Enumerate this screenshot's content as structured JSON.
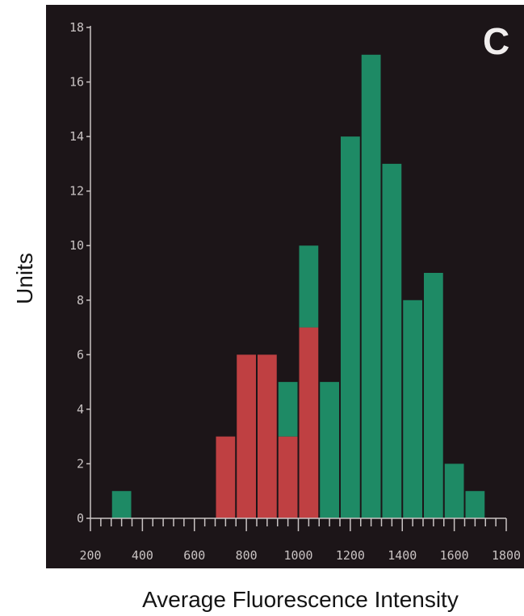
{
  "panel_label": "C",
  "colors": {
    "background": "#1c1518",
    "axis": "#c9c3c3",
    "green": "#1e8a65",
    "red": "#bf4042"
  },
  "chart_data": {
    "type": "bar",
    "stacked": true,
    "xlabel": "Average Fluorescence Intensity",
    "ylabel": "Units",
    "xlim": [
      200,
      1800
    ],
    "ylim": [
      0,
      18
    ],
    "bin_width": 80,
    "x_ticks": [
      200,
      400,
      600,
      800,
      1000,
      1200,
      1400,
      1600,
      1800
    ],
    "y_ticks": [
      0,
      2,
      4,
      6,
      8,
      10,
      12,
      14,
      16,
      18
    ],
    "x": [
      320,
      720,
      800,
      880,
      960,
      1040,
      1120,
      1200,
      1280,
      1360,
      1440,
      1520,
      1600,
      1680
    ],
    "series": [
      {
        "color": "red",
        "values": [
          0,
          3,
          6,
          6,
          3,
          7,
          0,
          0,
          0,
          0,
          0,
          0,
          0,
          0
        ]
      },
      {
        "color": "green",
        "values": [
          1,
          0,
          0,
          0,
          2,
          3,
          5,
          14,
          17,
          13,
          8,
          9,
          2,
          1
        ]
      }
    ],
    "grid": false,
    "legend": "none"
  }
}
